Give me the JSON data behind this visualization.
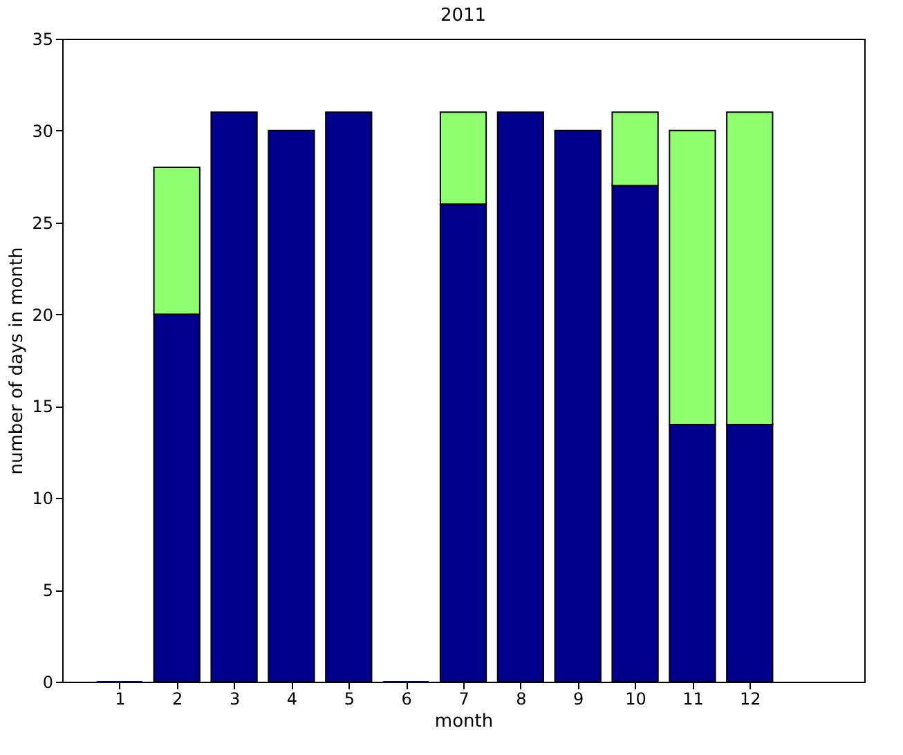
{
  "chart_data": {
    "type": "bar",
    "title": "2011",
    "xlabel": "month",
    "ylabel": "number of days in month",
    "x": [
      1,
      2,
      3,
      4,
      5,
      6,
      7,
      8,
      9,
      10,
      11,
      12
    ],
    "series": [
      {
        "color": "#00008c",
        "values": [
          0,
          20,
          31,
          30,
          31,
          0,
          26,
          31,
          30,
          27,
          14,
          14
        ]
      },
      {
        "color": "#8fff6f",
        "values": [
          null,
          8,
          null,
          null,
          null,
          null,
          5,
          null,
          null,
          4,
          16,
          17
        ]
      }
    ],
    "stacked": true,
    "xlim": [
      0,
      14
    ],
    "xticks": [
      1,
      2,
      3,
      4,
      5,
      6,
      7,
      8,
      9,
      10,
      11,
      12
    ],
    "ylim": [
      0,
      35
    ],
    "yticks": [
      0,
      5,
      10,
      15,
      20,
      25,
      30,
      35
    ],
    "grid": false
  }
}
